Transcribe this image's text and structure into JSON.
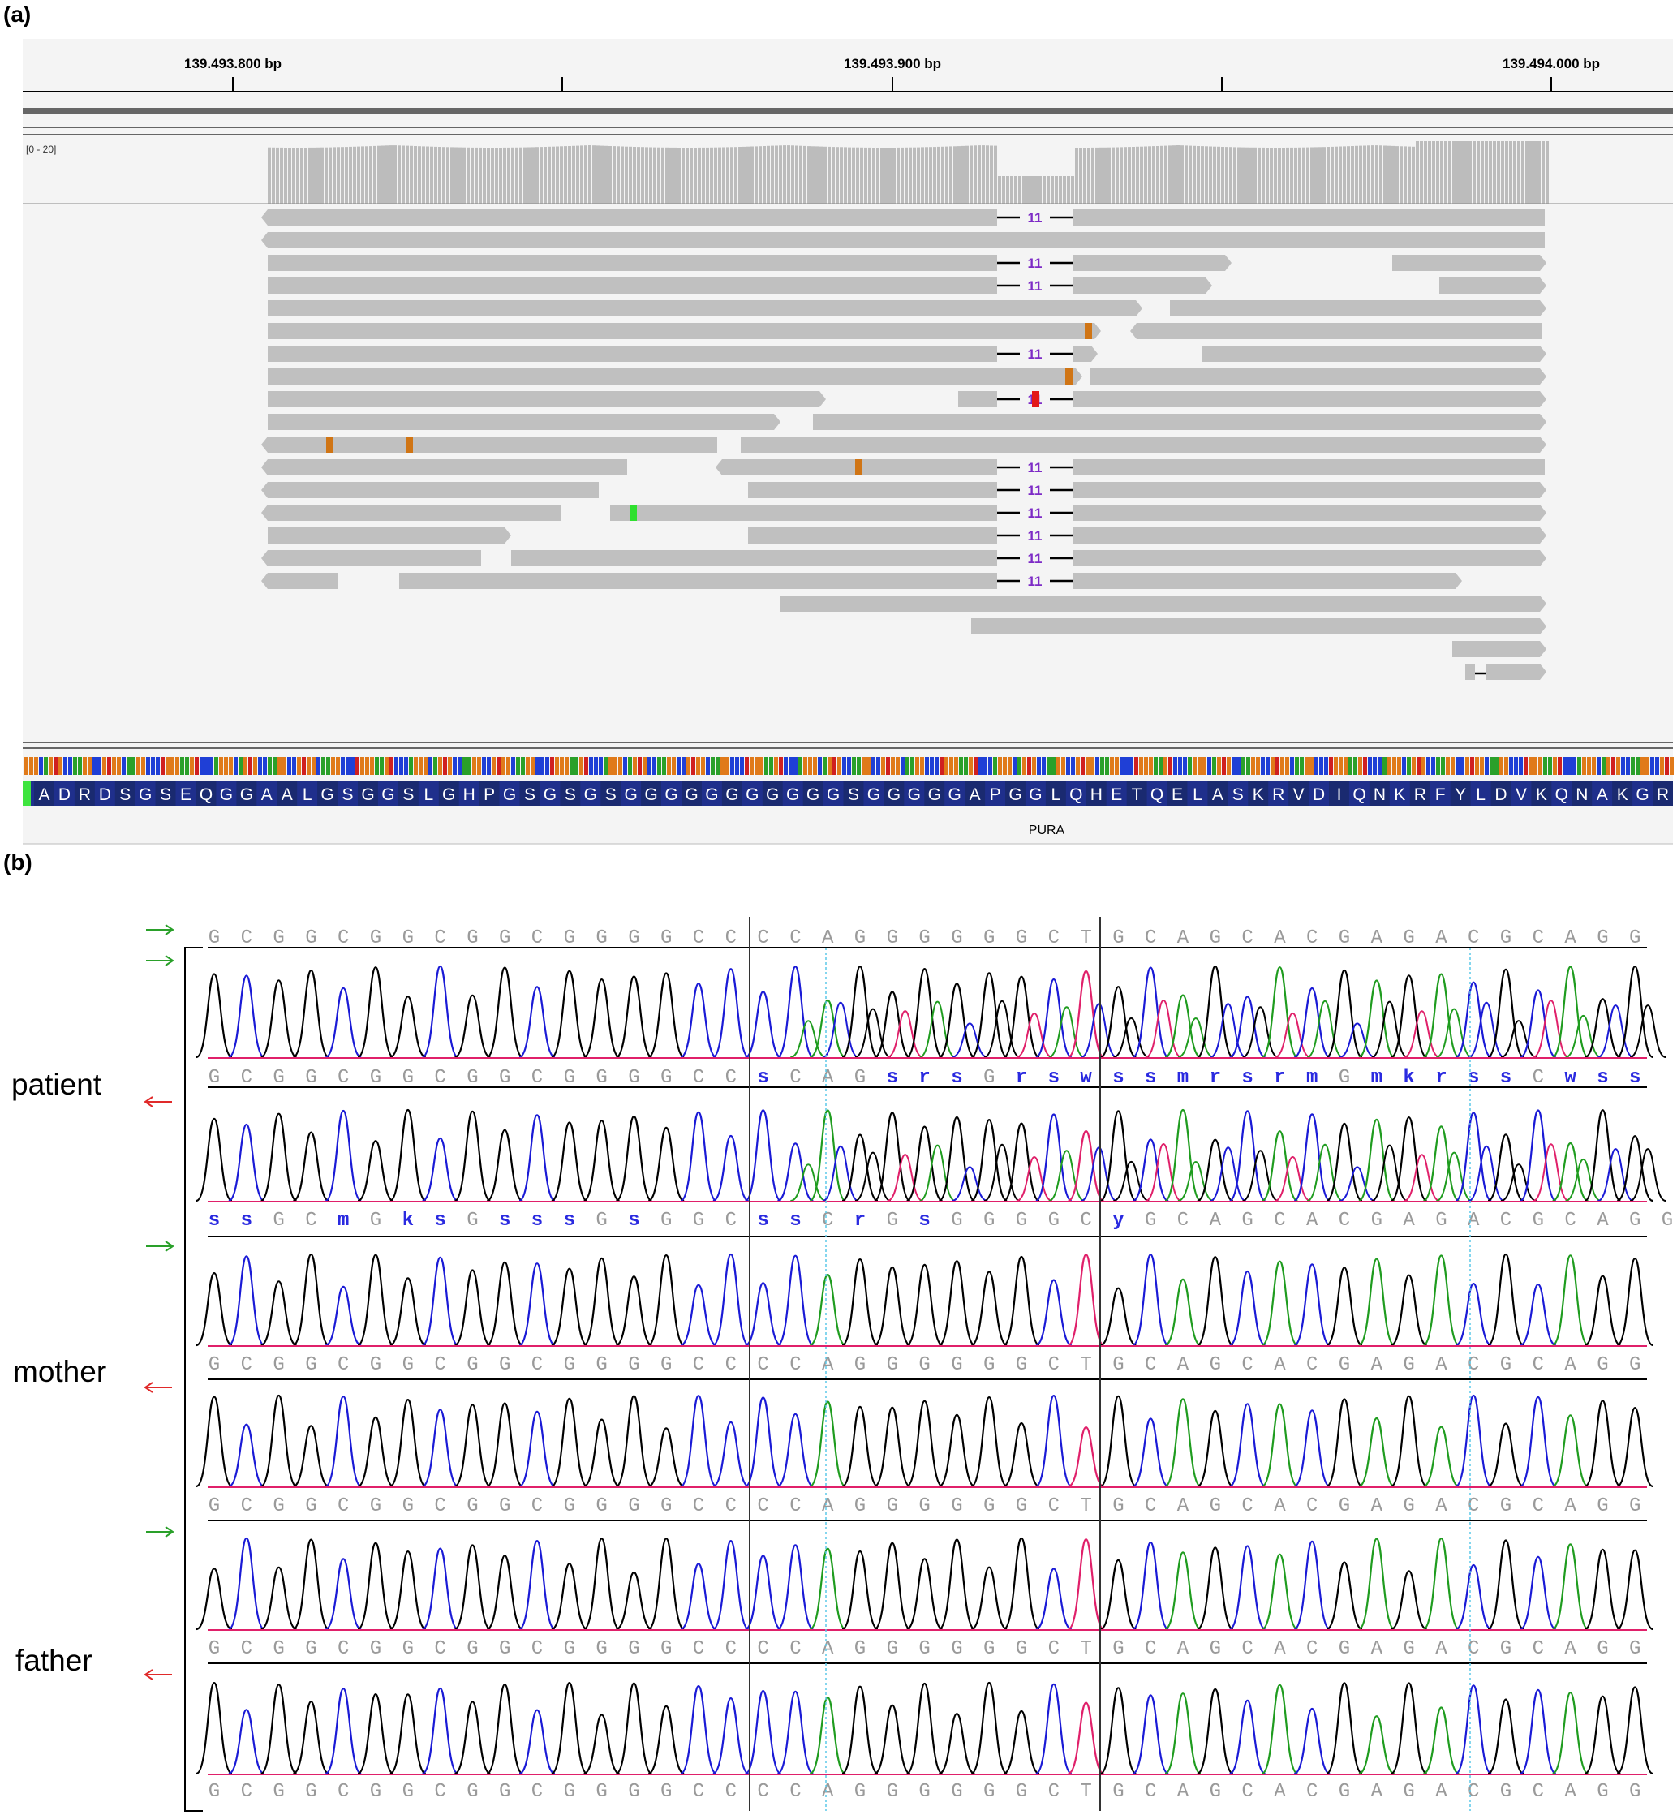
{
  "panel_a": {
    "label": "(a)",
    "ruler": {
      "ticks": [
        "139.493.800 bp",
        "139.493.900 bp",
        "139.494.000 bp"
      ]
    },
    "coverage_range": "[0 - 20]",
    "deletion_length": "11",
    "gene": "PURA",
    "amino_acids": "ADRDSGSEQGGAALGSGGSLGHPGSGSGSGGGGGGGGGGGSGGGGGAPGGLQHETQELASKRVDIQNKRFYLDVKQNAKGR"
  },
  "panel_b": {
    "label": "(b)",
    "ref_sequence": "GCGGCGGCGGCGGGGCCCCAGGGGGGCTGCAGCACGAGACGCAGG",
    "patient_fwd_calls": "GCGGCGGCGGCGGGGCCsCAGsrsGrswssmrsrmGmkrssCwss",
    "patient_rev_calls": "ssGCmGksGsssGsGGCssCrGsGGGGCyGCAGCACGAGACGCAGG",
    "individuals": [
      "patient",
      "mother",
      "father"
    ],
    "colors": {
      "A": "#1f9c1f",
      "C": "#1a1ad6",
      "G": "#000000",
      "T": "#e0206a",
      "fwd_arrow": "#2aa02a",
      "rev_arrow": "#e02a2a"
    }
  }
}
